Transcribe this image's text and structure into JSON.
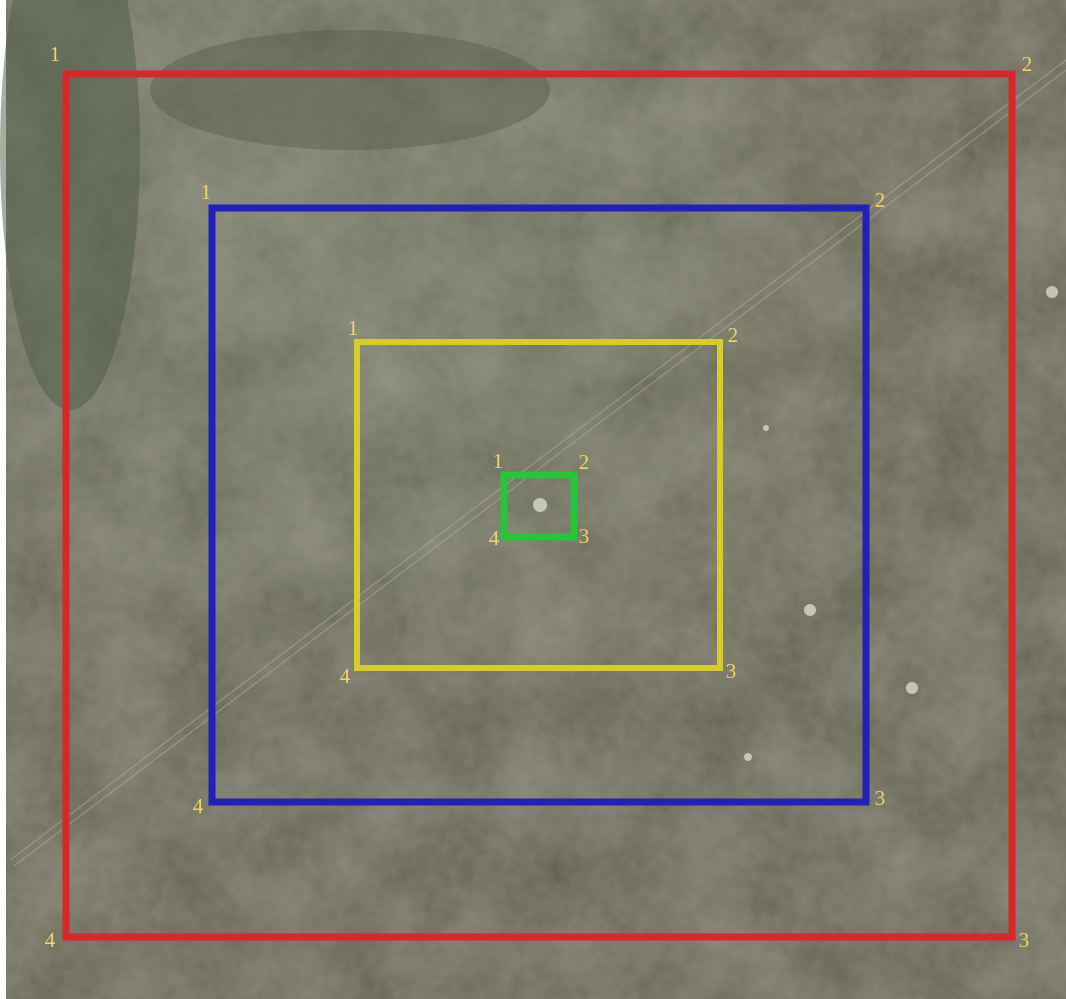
{
  "squares": [
    {
      "name": "red",
      "corners": [
        "1",
        "2",
        "3",
        "4"
      ]
    },
    {
      "name": "blue",
      "corners": [
        "1",
        "2",
        "3",
        "4"
      ]
    },
    {
      "name": "yellow",
      "corners": [
        "1",
        "2",
        "3",
        "4"
      ]
    },
    {
      "name": "green",
      "corners": [
        "1",
        "2",
        "3",
        "4"
      ]
    }
  ]
}
